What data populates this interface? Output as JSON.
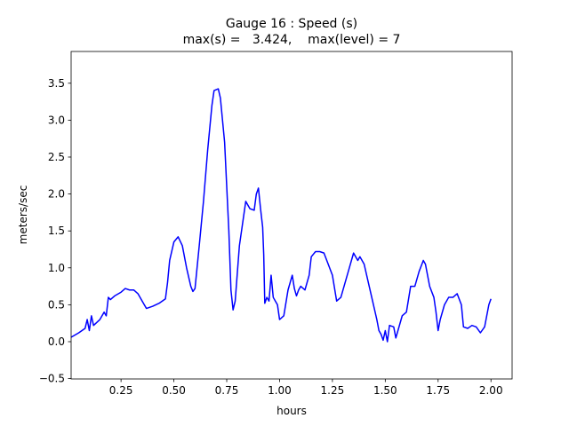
{
  "chart_data": {
    "type": "line",
    "title": "Gauge 16 : Speed (s)",
    "subtitle": "max(s) =   3.424,    max(level) = 7",
    "x_label": "hours",
    "y_label": "meters/sec",
    "xlim": [
      0.0139,
      2.1
    ],
    "ylim": [
      -0.505,
      3.93
    ],
    "xticks": [
      0.25,
      {
        "value": 0.5,
        "label": "0.50"
      },
      0.75,
      {
        "value": 1,
        "label": "1.00"
      },
      1.25,
      {
        "value": 1.5,
        "label": "1.50"
      },
      1.75,
      {
        "value": 2,
        "label": "2.00"
      }
    ],
    "yticks": [
      {
        "value": -0.5,
        "label": "−0.5"
      },
      {
        "value": 0,
        "label": "0.0"
      },
      0.5,
      {
        "value": 1,
        "label": "1.0"
      },
      1.5,
      {
        "value": 2,
        "label": "2.0"
      },
      2.5,
      {
        "value": 3,
        "label": "3.0"
      },
      3.5
    ],
    "grid": false,
    "series": [
      {
        "color": "#0000ff",
        "x": [
          0.014,
          0.05,
          0.08,
          0.09,
          0.1,
          0.11,
          0.12,
          0.15,
          0.17,
          0.18,
          0.19,
          0.2,
          0.22,
          0.25,
          0.27,
          0.29,
          0.31,
          0.33,
          0.35,
          0.37,
          0.4,
          0.43,
          0.46,
          0.47,
          0.48,
          0.5,
          0.52,
          0.54,
          0.56,
          0.58,
          0.59,
          0.6,
          0.62,
          0.64,
          0.66,
          0.68,
          0.69,
          0.71,
          0.72,
          0.74,
          0.76,
          0.77,
          0.78,
          0.79,
          0.81,
          0.83,
          0.84,
          0.86,
          0.88,
          0.89,
          0.9,
          0.91,
          0.92,
          0.925,
          0.93,
          0.94,
          0.95,
          0.96,
          0.97,
          0.98,
          0.99,
          1.0,
          1.02,
          1.04,
          1.06,
          1.07,
          1.08,
          1.09,
          1.1,
          1.12,
          1.14,
          1.15,
          1.17,
          1.19,
          1.21,
          1.23,
          1.25,
          1.27,
          1.29,
          1.31,
          1.33,
          1.35,
          1.37,
          1.38,
          1.4,
          1.42,
          1.44,
          1.46,
          1.47,
          1.48,
          1.49,
          1.5,
          1.51,
          1.52,
          1.54,
          1.55,
          1.56,
          1.58,
          1.6,
          1.62,
          1.64,
          1.66,
          1.68,
          1.69,
          1.71,
          1.73,
          1.74,
          1.75,
          1.76,
          1.78,
          1.8,
          1.82,
          1.84,
          1.86,
          1.87,
          1.89,
          1.91,
          1.93,
          1.95,
          1.97,
          1.99,
          2.0
        ],
        "values": [
          0.06,
          0.12,
          0.18,
          0.3,
          0.15,
          0.35,
          0.22,
          0.3,
          0.4,
          0.35,
          0.6,
          0.57,
          0.62,
          0.67,
          0.72,
          0.7,
          0.7,
          0.65,
          0.55,
          0.45,
          0.48,
          0.52,
          0.58,
          0.8,
          1.1,
          1.35,
          1.42,
          1.3,
          1.0,
          0.75,
          0.68,
          0.72,
          1.3,
          1.9,
          2.6,
          3.2,
          3.4,
          3.424,
          3.3,
          2.7,
          1.5,
          0.7,
          0.43,
          0.55,
          1.3,
          1.7,
          1.9,
          1.8,
          1.78,
          2.0,
          2.08,
          1.8,
          1.55,
          1.18,
          0.52,
          0.6,
          0.55,
          0.9,
          0.6,
          0.55,
          0.5,
          0.3,
          0.35,
          0.7,
          0.9,
          0.72,
          0.62,
          0.7,
          0.75,
          0.7,
          0.9,
          1.15,
          1.22,
          1.22,
          1.2,
          1.05,
          0.9,
          0.55,
          0.6,
          0.8,
          1.0,
          1.2,
          1.1,
          1.15,
          1.05,
          0.8,
          0.55,
          0.3,
          0.15,
          0.1,
          0.02,
          0.15,
          0.0,
          0.22,
          0.2,
          0.05,
          0.15,
          0.35,
          0.4,
          0.75,
          0.75,
          0.95,
          1.1,
          1.05,
          0.75,
          0.6,
          0.4,
          0.15,
          0.3,
          0.5,
          0.6,
          0.6,
          0.65,
          0.5,
          0.2,
          0.18,
          0.22,
          0.2,
          0.12,
          0.2,
          0.5,
          0.58
        ]
      }
    ]
  }
}
